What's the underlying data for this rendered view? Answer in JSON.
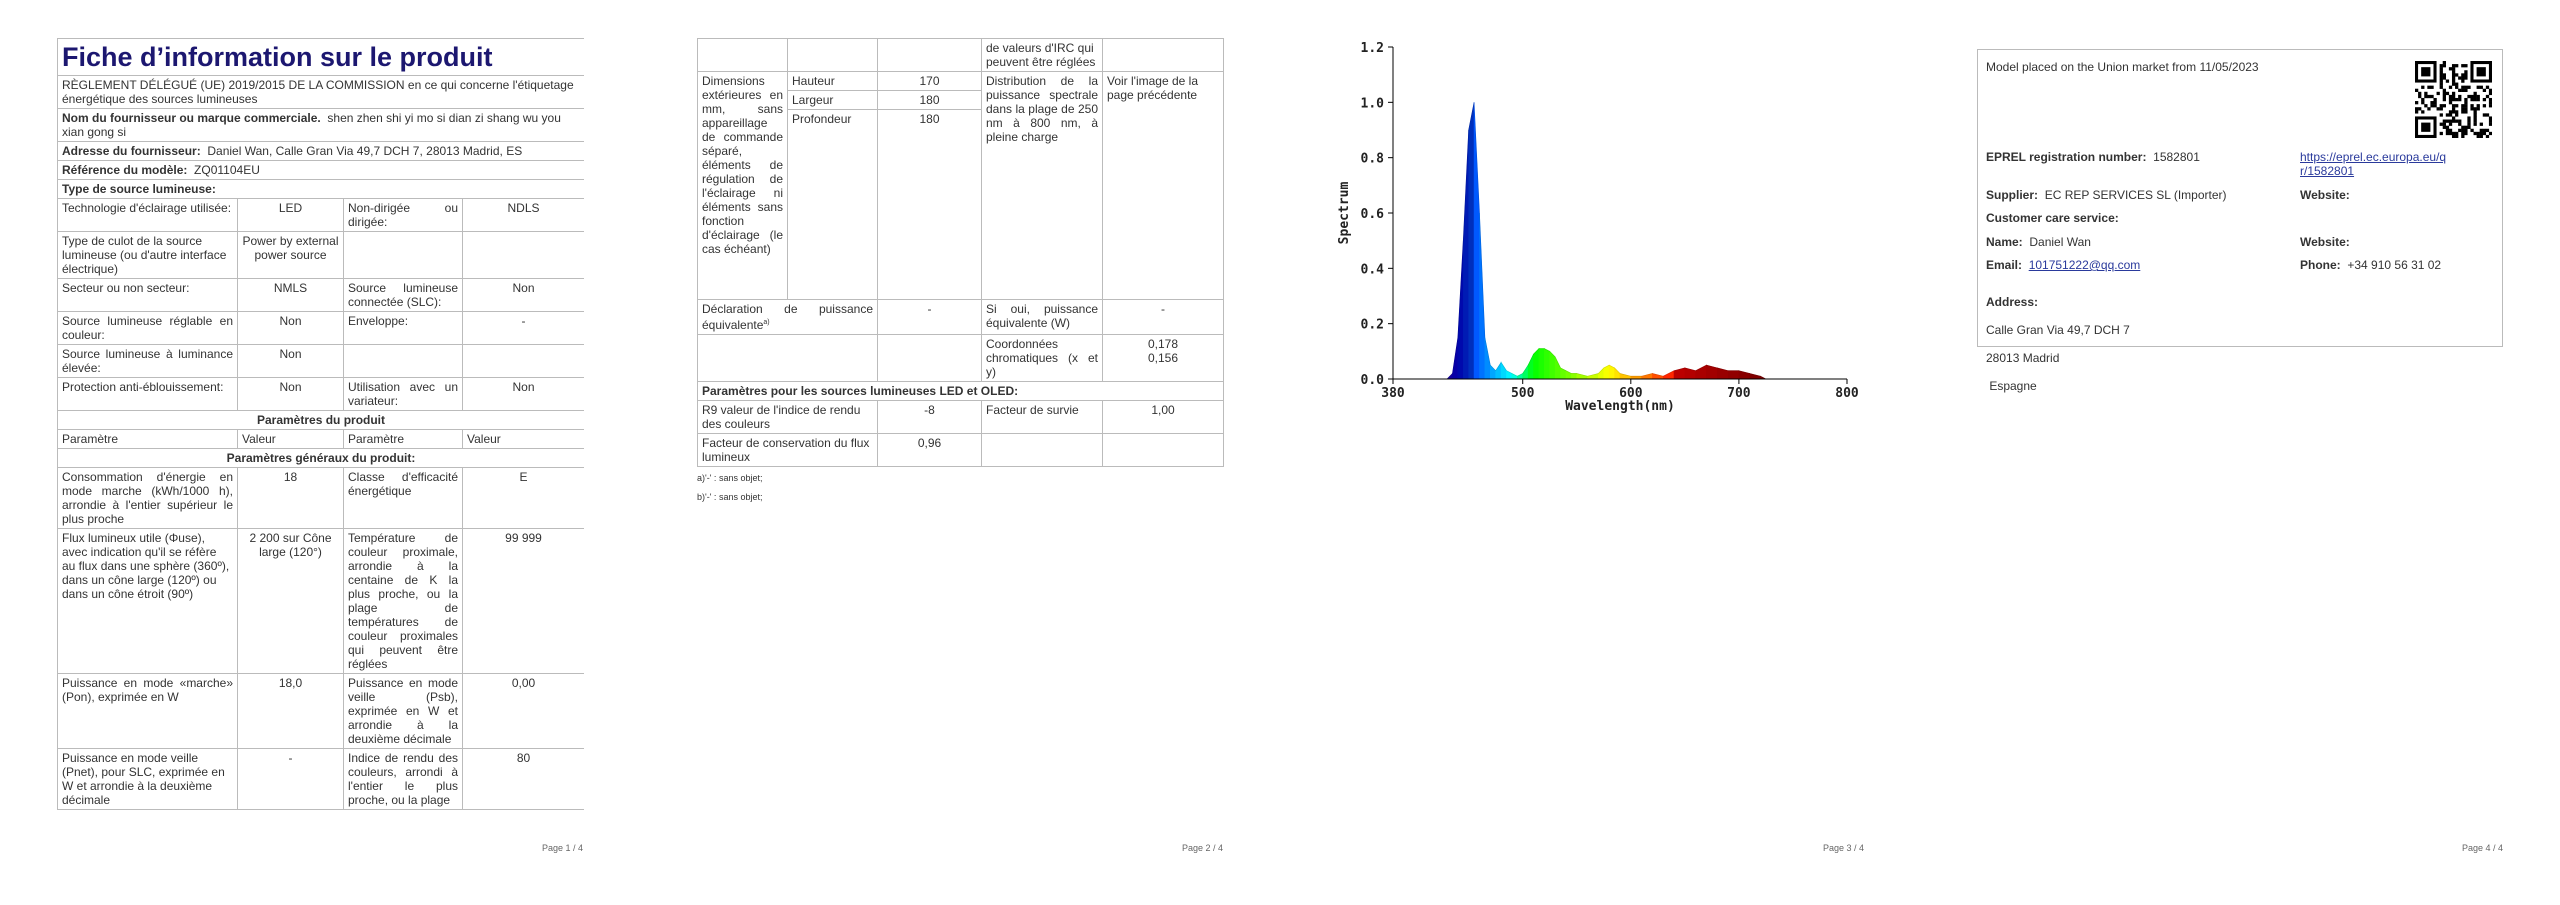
{
  "page1": {
    "title": "Fiche d’information sur le produit",
    "regulation": "RÈGLEMENT DÉLÉGUÉ (UE) 2019/2015 DE LA COMMISSION en ce qui concerne l'étiquetage énergétique des sources lumineuses",
    "supplier": {
      "label": "Nom du fournisseur ou marque commerciale.",
      "value": "shen zhen shi yi mo si dian zi shang wu you xian gong si"
    },
    "address": {
      "label": "Adresse du fournisseur:",
      "value": "Daniel Wan, Calle Gran Via 49,7 DCH 7, 28013 Madrid, ES"
    },
    "model": {
      "label": "Référence du modèle:",
      "value": "ZQ01104EU"
    },
    "type_heading": "Type de source lumineuse:",
    "type_rows": [
      [
        "Technologie d'éclairage utilisée:",
        "LED",
        "Non-dirigée ou dirigée:",
        "NDLS"
      ],
      [
        "Type de culot de la source lumineuse (ou d'autre interface électrique)",
        "Power by external power source"
      ],
      [
        "Secteur ou non secteur:",
        "NMLS",
        "Source lumineuse connectée (SLC):",
        "Non"
      ],
      [
        "Source lumineuse réglable en couleur:",
        "Non",
        "Enveloppe:",
        "-"
      ],
      [
        "Source lumineuse à luminance élevée:",
        "Non"
      ],
      [
        "Protection anti-éblouissement:",
        "Non",
        "Utilisation avec un variateur:",
        "Non"
      ]
    ],
    "params_heading": "Paramètres du produit",
    "params_columns": [
      "Paramètre",
      "Valeur",
      "Paramètre",
      "Valeur"
    ],
    "general_heading": "Paramètres généraux du produit:",
    "general_rows": [
      [
        "Consommation d'énergie en mode marche (kWh/1000 h), arrondie à l'entier supérieur le plus proche",
        "18",
        "Classe d'efficacité énergétique",
        "E"
      ],
      [
        "Flux lumineux utile (Φuse), avec indication qu'il se réfère au flux dans une sphère (360º), dans un cône large (120º) ou dans un cône étroit (90º)",
        "2 200 sur Cône large (120°)",
        "Température de couleur proximale, arrondie à la centaine de K la plus proche, ou la plage de températures de couleur proximales qui peuvent être réglées",
        "99 999"
      ],
      [
        "Puissance en mode «marche» (Pon), exprimée en W",
        "18,0",
        "Puissance en mode veille (Psb), exprimée en W et arrondie à la deuxième décimale",
        "0,00"
      ],
      [
        "Puissance en mode veille (Pnet), pour SLC, exprimée en W et arrondie à la deuxième décimale",
        "-",
        "Indice de rendu des couleurs, arrondi à l'entier le plus proche, ou la plage",
        "80"
      ]
    ]
  },
  "page2": {
    "irc_tail": "de valeurs d'IRC qui peuvent être réglées",
    "dimensions_label": "Dimensions extérieures en mm, sans appareillage de commande séparé, éléments de régulation de l'éclairage ni éléments sans fonction d'éclairage (le cas échéant)",
    "dimensions": [
      {
        "label": "Hauteur",
        "value": "170"
      },
      {
        "label": "Largeur",
        "value": "180"
      },
      {
        "label": "Profondeur",
        "value": "180"
      }
    ],
    "spd_label": "Distribution de la puissance spectrale dans la plage de 250 nm à 800 nm, à pleine charge",
    "spd_value": "Voir l'image de la page précédente",
    "equiv": {
      "label": "Déclaration de puissance équivalente",
      "note": "a)",
      "value": "-",
      "q_label": "Si oui, puissance équivalente (W)",
      "q_value": "-"
    },
    "chroma": {
      "label": "Coordonnées chromatiques (x et y)",
      "x": "0,178",
      "y": "0,156"
    },
    "led_heading": "Paramètres pour les sources lumineuses LED et OLED:",
    "r9": {
      "label": "R9 valeur de l'indice de rendu des couleurs",
      "value": "-8"
    },
    "survival": {
      "label": "Facteur de survie",
      "value": "1,00"
    },
    "maintenance": {
      "label": "Facteur de conservation du flux lumineux",
      "value": "0,96"
    },
    "footnotes": [
      "a)'-' : sans objet;",
      "b)'-' : sans objet;"
    ]
  },
  "chart_data": {
    "type": "area",
    "xlabel": "Wavelength(nm)",
    "ylabel": "Spectrum",
    "x": [
      430,
      435,
      440,
      445,
      450,
      455,
      460,
      465,
      470,
      475,
      480,
      485,
      490,
      495,
      500,
      505,
      510,
      515,
      520,
      525,
      530,
      535,
      540,
      545,
      550,
      560,
      570,
      575,
      580,
      585,
      590,
      600,
      610,
      620,
      630,
      640,
      650,
      660,
      670,
      680,
      690,
      700,
      710,
      720,
      725
    ],
    "values": [
      0,
      0.02,
      0.15,
      0.5,
      0.9,
      1.0,
      0.6,
      0.15,
      0.05,
      0.03,
      0.06,
      0.03,
      0.02,
      0.01,
      0.02,
      0.05,
      0.09,
      0.11,
      0.11,
      0.1,
      0.08,
      0.04,
      0.03,
      0.02,
      0.02,
      0.01,
      0.02,
      0.04,
      0.05,
      0.04,
      0.02,
      0.01,
      0.01,
      0.02,
      0.01,
      0.03,
      0.04,
      0.03,
      0.05,
      0.04,
      0.03,
      0.03,
      0.02,
      0.01,
      0
    ],
    "xlim": [
      380,
      800
    ],
    "ylim": [
      0,
      1.2
    ],
    "xticks": [
      380,
      500,
      600,
      700,
      800
    ],
    "yticks": [
      {
        "value": 0,
        "label": "0.0"
      },
      0.2,
      0.4,
      0.6,
      0.8,
      {
        "value": 1,
        "label": "1.0"
      },
      1.2
    ]
  },
  "page4": {
    "placed": "Model placed on the Union market from 11/05/2023",
    "eprel": {
      "label": "EPREL registration number:",
      "value": "1582801"
    },
    "link": "https://eprel.ec.europa.eu/qr/1582801",
    "supplier": {
      "label": "Supplier:",
      "value": "EC REP SERVICES SL (Importer)"
    },
    "website": "Website:",
    "care": "Customer care service:",
    "name": {
      "label": "Name:",
      "value": "Daniel Wan"
    },
    "website2": "Website:",
    "email": {
      "label": "Email:",
      "value": "101751222@qq.com"
    },
    "phone": {
      "label": "Phone:",
      "value": "+34 910 56 31 02"
    },
    "address": {
      "label": "Address:",
      "lines": [
        "Calle Gran Via 49,7 DCH 7",
        "28013 Madrid",
        " Espagne"
      ]
    }
  },
  "page_numbers": [
    "Page 1 / 4",
    "Page 2 / 4",
    "Page 3 / 4",
    "Page 4 / 4"
  ]
}
